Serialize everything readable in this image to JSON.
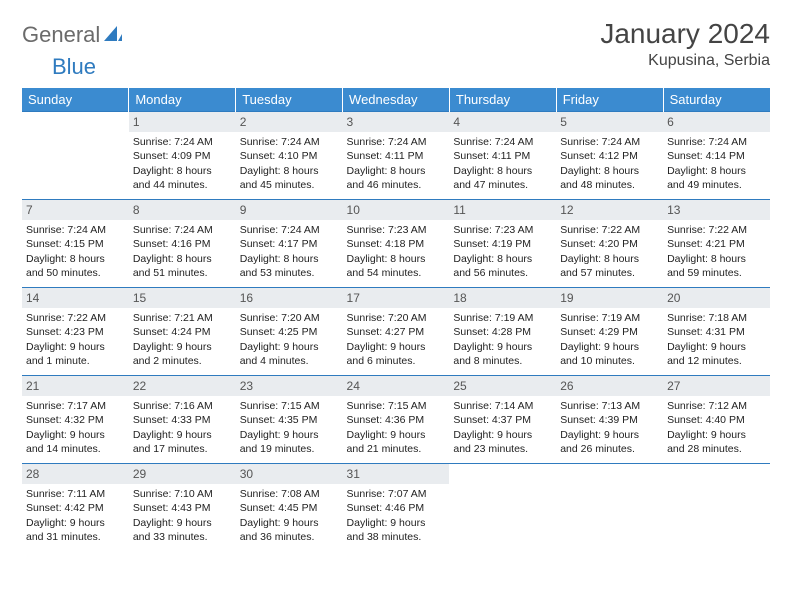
{
  "logo": {
    "text1": "General",
    "text2": "Blue"
  },
  "title": "January 2024",
  "location": "Kupusina, Serbia",
  "colors": {
    "header_bg": "#3b8bd0",
    "header_text": "#ffffff",
    "rule": "#2f7bbf",
    "daynum_bg": "#e9ecef",
    "logo_gray": "#6b6b6b",
    "logo_blue": "#2f7bbf"
  },
  "weekdays": [
    "Sunday",
    "Monday",
    "Tuesday",
    "Wednesday",
    "Thursday",
    "Friday",
    "Saturday"
  ],
  "weeks": [
    [
      null,
      {
        "n": "1",
        "sr": "Sunrise: 7:24 AM",
        "ss": "Sunset: 4:09 PM",
        "d1": "Daylight: 8 hours",
        "d2": "and 44 minutes."
      },
      {
        "n": "2",
        "sr": "Sunrise: 7:24 AM",
        "ss": "Sunset: 4:10 PM",
        "d1": "Daylight: 8 hours",
        "d2": "and 45 minutes."
      },
      {
        "n": "3",
        "sr": "Sunrise: 7:24 AM",
        "ss": "Sunset: 4:11 PM",
        "d1": "Daylight: 8 hours",
        "d2": "and 46 minutes."
      },
      {
        "n": "4",
        "sr": "Sunrise: 7:24 AM",
        "ss": "Sunset: 4:11 PM",
        "d1": "Daylight: 8 hours",
        "d2": "and 47 minutes."
      },
      {
        "n": "5",
        "sr": "Sunrise: 7:24 AM",
        "ss": "Sunset: 4:12 PM",
        "d1": "Daylight: 8 hours",
        "d2": "and 48 minutes."
      },
      {
        "n": "6",
        "sr": "Sunrise: 7:24 AM",
        "ss": "Sunset: 4:14 PM",
        "d1": "Daylight: 8 hours",
        "d2": "and 49 minutes."
      }
    ],
    [
      {
        "n": "7",
        "sr": "Sunrise: 7:24 AM",
        "ss": "Sunset: 4:15 PM",
        "d1": "Daylight: 8 hours",
        "d2": "and 50 minutes."
      },
      {
        "n": "8",
        "sr": "Sunrise: 7:24 AM",
        "ss": "Sunset: 4:16 PM",
        "d1": "Daylight: 8 hours",
        "d2": "and 51 minutes."
      },
      {
        "n": "9",
        "sr": "Sunrise: 7:24 AM",
        "ss": "Sunset: 4:17 PM",
        "d1": "Daylight: 8 hours",
        "d2": "and 53 minutes."
      },
      {
        "n": "10",
        "sr": "Sunrise: 7:23 AM",
        "ss": "Sunset: 4:18 PM",
        "d1": "Daylight: 8 hours",
        "d2": "and 54 minutes."
      },
      {
        "n": "11",
        "sr": "Sunrise: 7:23 AM",
        "ss": "Sunset: 4:19 PM",
        "d1": "Daylight: 8 hours",
        "d2": "and 56 minutes."
      },
      {
        "n": "12",
        "sr": "Sunrise: 7:22 AM",
        "ss": "Sunset: 4:20 PM",
        "d1": "Daylight: 8 hours",
        "d2": "and 57 minutes."
      },
      {
        "n": "13",
        "sr": "Sunrise: 7:22 AM",
        "ss": "Sunset: 4:21 PM",
        "d1": "Daylight: 8 hours",
        "d2": "and 59 minutes."
      }
    ],
    [
      {
        "n": "14",
        "sr": "Sunrise: 7:22 AM",
        "ss": "Sunset: 4:23 PM",
        "d1": "Daylight: 9 hours",
        "d2": "and 1 minute."
      },
      {
        "n": "15",
        "sr": "Sunrise: 7:21 AM",
        "ss": "Sunset: 4:24 PM",
        "d1": "Daylight: 9 hours",
        "d2": "and 2 minutes."
      },
      {
        "n": "16",
        "sr": "Sunrise: 7:20 AM",
        "ss": "Sunset: 4:25 PM",
        "d1": "Daylight: 9 hours",
        "d2": "and 4 minutes."
      },
      {
        "n": "17",
        "sr": "Sunrise: 7:20 AM",
        "ss": "Sunset: 4:27 PM",
        "d1": "Daylight: 9 hours",
        "d2": "and 6 minutes."
      },
      {
        "n": "18",
        "sr": "Sunrise: 7:19 AM",
        "ss": "Sunset: 4:28 PM",
        "d1": "Daylight: 9 hours",
        "d2": "and 8 minutes."
      },
      {
        "n": "19",
        "sr": "Sunrise: 7:19 AM",
        "ss": "Sunset: 4:29 PM",
        "d1": "Daylight: 9 hours",
        "d2": "and 10 minutes."
      },
      {
        "n": "20",
        "sr": "Sunrise: 7:18 AM",
        "ss": "Sunset: 4:31 PM",
        "d1": "Daylight: 9 hours",
        "d2": "and 12 minutes."
      }
    ],
    [
      {
        "n": "21",
        "sr": "Sunrise: 7:17 AM",
        "ss": "Sunset: 4:32 PM",
        "d1": "Daylight: 9 hours",
        "d2": "and 14 minutes."
      },
      {
        "n": "22",
        "sr": "Sunrise: 7:16 AM",
        "ss": "Sunset: 4:33 PM",
        "d1": "Daylight: 9 hours",
        "d2": "and 17 minutes."
      },
      {
        "n": "23",
        "sr": "Sunrise: 7:15 AM",
        "ss": "Sunset: 4:35 PM",
        "d1": "Daylight: 9 hours",
        "d2": "and 19 minutes."
      },
      {
        "n": "24",
        "sr": "Sunrise: 7:15 AM",
        "ss": "Sunset: 4:36 PM",
        "d1": "Daylight: 9 hours",
        "d2": "and 21 minutes."
      },
      {
        "n": "25",
        "sr": "Sunrise: 7:14 AM",
        "ss": "Sunset: 4:37 PM",
        "d1": "Daylight: 9 hours",
        "d2": "and 23 minutes."
      },
      {
        "n": "26",
        "sr": "Sunrise: 7:13 AM",
        "ss": "Sunset: 4:39 PM",
        "d1": "Daylight: 9 hours",
        "d2": "and 26 minutes."
      },
      {
        "n": "27",
        "sr": "Sunrise: 7:12 AM",
        "ss": "Sunset: 4:40 PM",
        "d1": "Daylight: 9 hours",
        "d2": "and 28 minutes."
      }
    ],
    [
      {
        "n": "28",
        "sr": "Sunrise: 7:11 AM",
        "ss": "Sunset: 4:42 PM",
        "d1": "Daylight: 9 hours",
        "d2": "and 31 minutes."
      },
      {
        "n": "29",
        "sr": "Sunrise: 7:10 AM",
        "ss": "Sunset: 4:43 PM",
        "d1": "Daylight: 9 hours",
        "d2": "and 33 minutes."
      },
      {
        "n": "30",
        "sr": "Sunrise: 7:08 AM",
        "ss": "Sunset: 4:45 PM",
        "d1": "Daylight: 9 hours",
        "d2": "and 36 minutes."
      },
      {
        "n": "31",
        "sr": "Sunrise: 7:07 AM",
        "ss": "Sunset: 4:46 PM",
        "d1": "Daylight: 9 hours",
        "d2": "and 38 minutes."
      },
      null,
      null,
      null
    ]
  ]
}
